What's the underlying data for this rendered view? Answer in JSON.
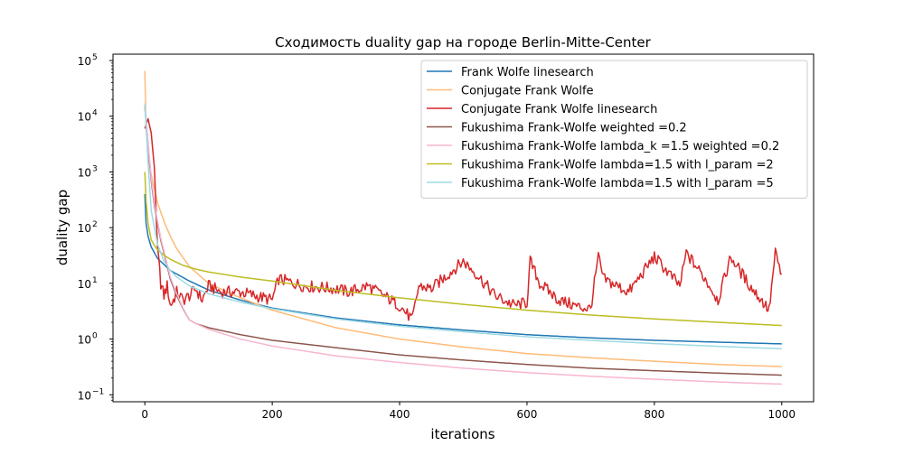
{
  "chart_data": {
    "type": "line",
    "title": "Сходимость duality gap на городе Berlin-Mitte-Center",
    "xlabel": "iterations",
    "ylabel": "duality gap",
    "xlim": [
      -50,
      1050
    ],
    "ylim": [
      0.075,
      130000
    ],
    "yscale": "log",
    "grid": false,
    "legend_position": "top-right",
    "x_ticks": [
      0,
      200,
      400,
      600,
      800,
      1000
    ],
    "y_ticks": [
      {
        "value": 0.1,
        "base": "10",
        "exp": "−1"
      },
      {
        "value": 1,
        "base": "10",
        "exp": "0"
      },
      {
        "value": 10,
        "base": "10",
        "exp": "1"
      },
      {
        "value": 100,
        "base": "10",
        "exp": "2"
      },
      {
        "value": 1000,
        "base": "10",
        "exp": "3"
      },
      {
        "value": 10000,
        "base": "10",
        "exp": "4"
      },
      {
        "value": 100000,
        "base": "10",
        "exp": "5"
      }
    ],
    "series": [
      {
        "name": "Frank Wolfe linesearch",
        "color": "#1f77b4",
        "style": "smooth",
        "x": [
          0,
          2,
          5,
          10,
          20,
          40,
          70,
          100,
          150,
          200,
          300,
          400,
          500,
          600,
          700,
          800,
          900,
          1000
        ],
        "y": [
          400,
          120,
          70,
          45,
          28,
          17,
          11,
          7.6,
          5.0,
          3.6,
          2.4,
          1.8,
          1.45,
          1.2,
          1.05,
          0.95,
          0.88,
          0.82
        ]
      },
      {
        "name": "Conjugate Frank Wolfe",
        "color": "#ffbb78",
        "style": "smooth",
        "x": [
          0,
          2,
          5,
          10,
          15,
          20,
          30,
          40,
          50,
          70,
          100,
          150,
          200,
          300,
          400,
          500,
          600,
          700,
          800,
          900,
          1000
        ],
        "y": [
          65000,
          6000,
          2000,
          900,
          500,
          280,
          130,
          70,
          42,
          20,
          10,
          5.5,
          3.3,
          1.6,
          1.0,
          0.72,
          0.55,
          0.46,
          0.4,
          0.35,
          0.32
        ]
      },
      {
        "name": "Conjugate Frank Wolfe linesearch",
        "color": "#d62728",
        "style": "noisy",
        "x": [
          0,
          5,
          10,
          15,
          20,
          25,
          30,
          35,
          40,
          45,
          50,
          60,
          70,
          80,
          90,
          100,
          120,
          150,
          200,
          210,
          250,
          300,
          320,
          350,
          400,
          420,
          430,
          450,
          500,
          520,
          550,
          580,
          600,
          605,
          620,
          650,
          680,
          700,
          712,
          720,
          760,
          800,
          840,
          850,
          880,
          900,
          920,
          950,
          975,
          980,
          990,
          1000
        ],
        "y": [
          6000,
          9000,
          5000,
          1200,
          40,
          10,
          6,
          9,
          4,
          5,
          7,
          5,
          6,
          8,
          5,
          9,
          7,
          7,
          5,
          12,
          9,
          8,
          7,
          9,
          4,
          2.2,
          9,
          8,
          25,
          15,
          6,
          4,
          4.5,
          25,
          10,
          5,
          3.8,
          3.5,
          30,
          12,
          7,
          30,
          9,
          35,
          12,
          5,
          30,
          9,
          4,
          3.2,
          35,
          13
        ]
      },
      {
        "name": "Fukushima Frank-Wolfe weighted =0.2",
        "color": "#8c564b",
        "style": "smooth",
        "x": [
          0,
          5,
          10,
          15,
          20,
          25,
          30,
          40,
          50,
          60,
          70,
          80,
          100,
          150,
          200,
          300,
          400,
          500,
          600,
          700,
          800,
          900,
          1000
        ],
        "y": [
          15000,
          3000,
          700,
          250,
          120,
          60,
          35,
          12,
          6,
          3.5,
          2.2,
          1.9,
          1.6,
          1.2,
          0.95,
          0.7,
          0.52,
          0.42,
          0.35,
          0.3,
          0.27,
          0.245,
          0.225
        ]
      },
      {
        "name": "Fukushima Frank-Wolfe lambda_k =1.5 weighted =0.2",
        "color": "#f7b6d2",
        "style": "smooth",
        "x": [
          0,
          5,
          10,
          15,
          20,
          25,
          30,
          40,
          50,
          60,
          70,
          80,
          100,
          150,
          200,
          300,
          400,
          500,
          600,
          700,
          800,
          900,
          1000
        ],
        "y": [
          17000,
          3500,
          800,
          280,
          130,
          65,
          38,
          13,
          6.5,
          3.6,
          2.2,
          1.9,
          1.5,
          1.0,
          0.75,
          0.5,
          0.38,
          0.3,
          0.25,
          0.215,
          0.19,
          0.17,
          0.155
        ]
      },
      {
        "name": "Fukushima Frank-Wolfe lambda=1.5 with l_param =2",
        "color": "#bcbd22",
        "style": "smooth",
        "x": [
          0,
          2,
          5,
          10,
          15,
          20,
          30,
          40,
          60,
          80,
          100,
          150,
          200,
          300,
          400,
          500,
          600,
          700,
          800,
          900,
          1000
        ],
        "y": [
          1000,
          300,
          120,
          60,
          48,
          40,
          32,
          27,
          21,
          18,
          16,
          13,
          11,
          7.5,
          5.5,
          4.2,
          3.3,
          2.7,
          2.3,
          2.0,
          1.75
        ]
      },
      {
        "name": "Fukushima Frank-Wolfe lambda=1.5 with l_param =5",
        "color": "#9edae5",
        "style": "smooth",
        "x": [
          0,
          5,
          10,
          20,
          30,
          40,
          50,
          70,
          100,
          150,
          200,
          300,
          400,
          500,
          600,
          700,
          800,
          900,
          1000
        ],
        "y": [
          17000,
          1500,
          200,
          50,
          25,
          17,
          13,
          9,
          6.5,
          4.6,
          3.5,
          2.3,
          1.7,
          1.35,
          1.1,
          0.95,
          0.83,
          0.74,
          0.67
        ]
      }
    ]
  }
}
